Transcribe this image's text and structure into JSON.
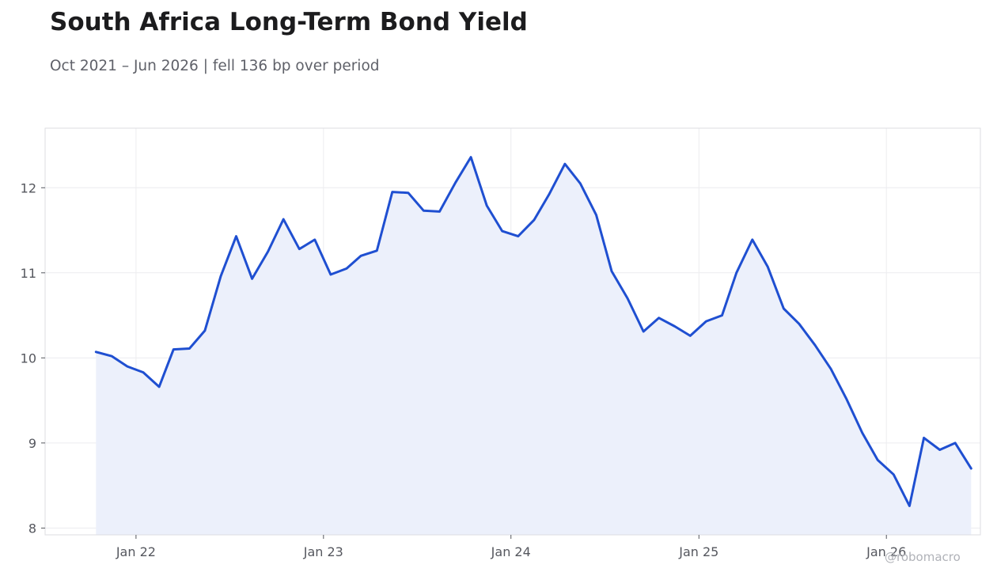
{
  "header": {
    "title": "South Africa Long-Term Bond Yield",
    "subtitle": "Oct 2021 – Jun 2026 | fell 136 bp over period"
  },
  "watermark": "@robomacro",
  "colors": {
    "line": "#1f4fd1",
    "fill": "#ecf0fb",
    "grid": "#ececef",
    "frame": "#dcdde2"
  },
  "chart_data": {
    "type": "area",
    "title": "South Africa Long-Term Bond Yield",
    "subtitle": "Oct 2021 – Jun 2026 | fell 136 bp over period",
    "xlabel": "",
    "ylabel": "",
    "grid": true,
    "legend": "none",
    "ylim": [
      7.92,
      12.7
    ],
    "xlim": [
      "2021-07-08",
      "2026-07-03"
    ],
    "yticks": [
      8,
      9,
      10,
      11,
      12
    ],
    "xticks": [
      {
        "date": "2022-01-01",
        "label": "Jan 22"
      },
      {
        "date": "2023-01-01",
        "label": "Jan 23"
      },
      {
        "date": "2024-01-01",
        "label": "Jan 24"
      },
      {
        "date": "2025-01-01",
        "label": "Jan 25"
      },
      {
        "date": "2026-01-01",
        "label": "Jan 26"
      }
    ],
    "series": [
      {
        "name": "",
        "x": [
          "2021-10",
          "2021-11",
          "2021-12",
          "2022-01",
          "2022-02",
          "2022-03",
          "2022-04",
          "2022-05",
          "2022-06",
          "2022-07",
          "2022-08",
          "2022-09",
          "2022-10",
          "2022-11",
          "2022-12",
          "2023-01",
          "2023-02",
          "2023-03",
          "2023-04",
          "2023-05",
          "2023-06",
          "2023-07",
          "2023-08",
          "2023-09",
          "2023-10",
          "2023-11",
          "2023-12",
          "2024-01",
          "2024-02",
          "2024-03",
          "2024-04",
          "2024-05",
          "2024-06",
          "2024-07",
          "2024-08",
          "2024-09",
          "2024-10",
          "2024-11",
          "2024-12",
          "2025-01",
          "2025-02",
          "2025-03",
          "2025-04",
          "2025-05",
          "2025-06",
          "2025-07",
          "2025-08",
          "2025-09",
          "2025-10",
          "2025-11",
          "2025-12",
          "2026-01",
          "2026-02",
          "2026-03",
          "2026-04",
          "2026-05",
          "2026-06"
        ],
        "values": [
          10.07,
          10.02,
          9.9,
          9.83,
          9.66,
          10.1,
          10.11,
          10.32,
          10.96,
          11.43,
          10.93,
          11.25,
          11.63,
          11.28,
          11.39,
          10.98,
          11.05,
          11.2,
          11.26,
          11.95,
          11.94,
          11.73,
          11.72,
          12.06,
          12.36,
          11.79,
          11.49,
          11.43,
          11.62,
          11.92,
          12.28,
          12.05,
          11.68,
          11.02,
          10.7,
          10.31,
          10.47,
          10.37,
          10.26,
          10.43,
          10.5,
          11.0,
          11.39,
          11.07,
          10.58,
          10.4,
          10.15,
          9.87,
          9.52,
          9.12,
          8.8,
          8.63,
          8.26,
          9.06,
          8.92,
          9.0,
          8.7
        ]
      }
    ]
  }
}
